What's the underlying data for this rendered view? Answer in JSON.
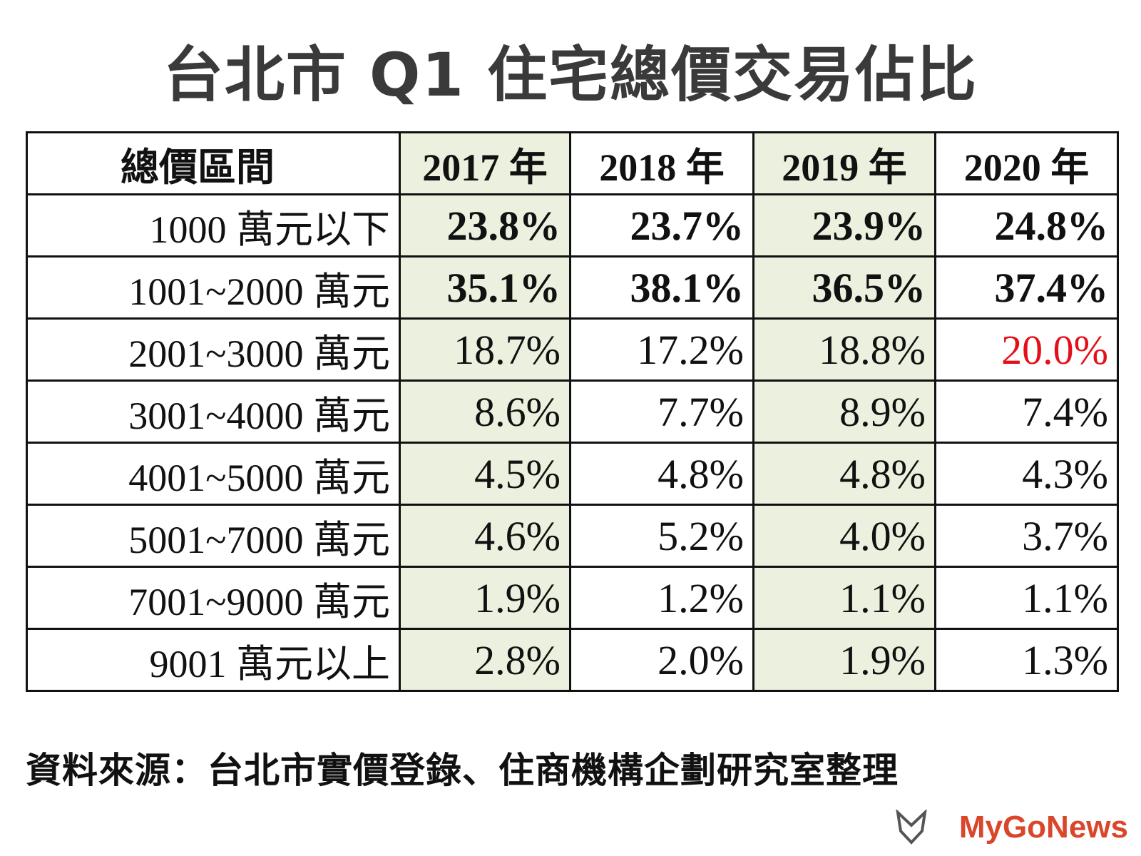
{
  "header": {
    "title": "台北市 Q1 住宅總價交易佔比"
  },
  "table": {
    "columns": [
      "總價區間",
      "2017 年",
      "2018 年",
      "2019 年",
      "2020 年"
    ],
    "rows": [
      [
        "1000 萬元以下",
        "23.8%",
        "23.7%",
        "23.9%",
        "24.8%"
      ],
      [
        "1001~2000 萬元",
        "35.1%",
        "38.1%",
        "36.5%",
        "37.4%"
      ],
      [
        "2001~3000 萬元",
        "18.7%",
        "17.2%",
        "18.8%",
        "20.0%"
      ],
      [
        "3001~4000 萬元",
        "8.6%",
        "7.7%",
        "8.9%",
        "7.4%"
      ],
      [
        "4001~5000 萬元",
        "4.5%",
        "4.8%",
        "4.8%",
        "4.3%"
      ],
      [
        "5001~7000 萬元",
        "4.6%",
        "5.2%",
        "4.0%",
        "3.7%"
      ],
      [
        "7001~9000 萬元",
        "1.9%",
        "1.2%",
        "1.1%",
        "1.1%"
      ],
      [
        "9001 萬元以上",
        "2.8%",
        "2.0%",
        "1.9%",
        "1.3%"
      ]
    ]
  },
  "footer": {
    "source": "資料來源：台北市實價登錄、住商機構企劃研究室整理",
    "logo": "MyGoNews"
  }
}
